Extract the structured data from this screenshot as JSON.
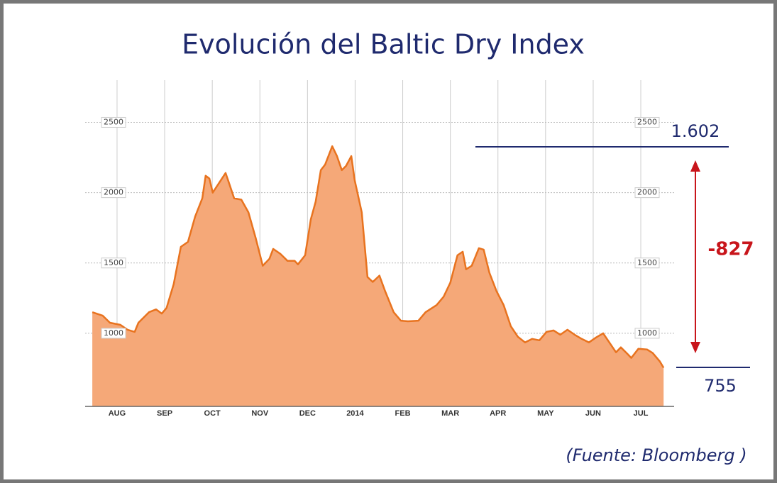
{
  "chart_data": {
    "type": "area",
    "title": "Evolución del Baltic Dry Index",
    "color": "#f5a878",
    "line_color": "#e8731f",
    "grid": true,
    "x": [
      -0.52,
      -0.3,
      -0.15,
      0.07,
      0.22,
      0.37,
      0.45,
      0.67,
      0.82,
      0.94,
      1.04,
      1.19,
      1.34,
      1.49,
      1.64,
      1.79,
      1.86,
      1.94,
      2.01,
      2.28,
      2.34,
      2.46,
      2.61,
      2.76,
      2.91,
      3.06,
      3.2,
      3.28,
      3.43,
      3.58,
      3.73,
      3.8,
      3.95,
      4.07,
      4.17,
      4.28,
      4.37,
      4.52,
      4.62,
      4.72,
      4.81,
      4.92,
      4.99,
      5.14,
      5.26,
      5.37,
      5.51,
      5.63,
      5.81,
      5.96,
      6.11,
      6.33,
      6.48,
      6.71,
      6.86,
      7.0,
      7.15,
      7.26,
      7.33,
      7.45,
      7.6,
      7.7,
      7.82,
      7.97,
      8.12,
      8.27,
      8.42,
      8.57,
      8.72,
      8.87,
      9.02,
      9.17,
      9.31,
      9.46,
      9.61,
      9.76,
      9.91,
      10.06,
      10.21,
      10.36,
      10.48,
      10.58,
      10.73,
      10.8,
      10.95,
      11.13,
      11.25,
      11.4,
      11.48
    ],
    "values": [
      1150,
      1125,
      1075,
      1060,
      1025,
      1010,
      1075,
      1150,
      1170,
      1140,
      1180,
      1350,
      1615,
      1650,
      1830,
      1960,
      2120,
      2100,
      2000,
      2140,
      2080,
      1960,
      1950,
      1860,
      1680,
      1480,
      1530,
      1600,
      1565,
      1515,
      1515,
      1490,
      1555,
      1810,
      1935,
      2160,
      2200,
      2330,
      2260,
      2160,
      2190,
      2260,
      2090,
      1860,
      1400,
      1365,
      1410,
      1300,
      1150,
      1090,
      1085,
      1090,
      1150,
      1200,
      1260,
      1360,
      1555,
      1580,
      1455,
      1480,
      1605,
      1595,
      1430,
      1300,
      1200,
      1050,
      975,
      935,
      960,
      950,
      1010,
      1020,
      990,
      1025,
      990,
      960,
      935,
      970,
      1000,
      925,
      865,
      900,
      850,
      825,
      890,
      885,
      860,
      800,
      755
    ],
    "xlim": [
      -0.67,
      11.7
    ],
    "xticks": [
      {
        "value": 0,
        "label": "AUG"
      },
      {
        "value": 1,
        "label": "SEP"
      },
      {
        "value": 2,
        "label": "OCT"
      },
      {
        "value": 3,
        "label": "NOV"
      },
      {
        "value": 4,
        "label": "DEC"
      },
      {
        "value": 5,
        "label": "2014"
      },
      {
        "value": 6,
        "label": "FEB"
      },
      {
        "value": 7,
        "label": "MAR"
      },
      {
        "value": 8,
        "label": "APR"
      },
      {
        "value": 9,
        "label": "MAY"
      },
      {
        "value": 10,
        "label": "JUN"
      },
      {
        "value": 11,
        "label": "JUL"
      }
    ],
    "ylim": [
      480,
      2800
    ],
    "yticks": [
      1000,
      1500,
      2000,
      2500
    ],
    "annotations": {
      "high": "1.602",
      "low": "755",
      "change": "-827",
      "source": "(Fuente: Bloomberg )"
    }
  }
}
